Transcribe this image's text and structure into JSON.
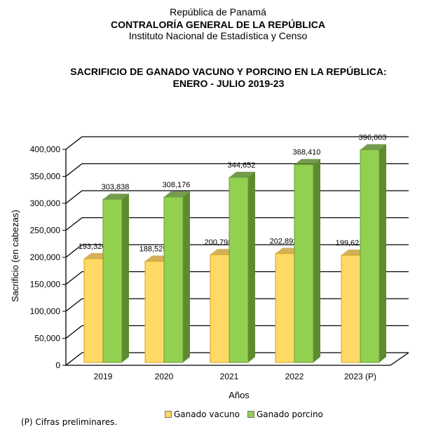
{
  "header": {
    "line1": "República de Panamá",
    "line2": "CONTRALORÍA GENERAL DE LA REPÚBLICA",
    "line3": "Instituto Nacional de Estadística y Censo"
  },
  "note": "(P) Cifras preliminares.",
  "chart_data": {
    "type": "bar",
    "title": "SACRIFICIO DE GANADO VACUNO Y PORCINO EN LA REPÚBLICA:",
    "subtitle": "ENERO - JULIO 2019-23",
    "xlabel": "Años",
    "ylabel": "Sacrificio  (en cabezas)",
    "ylim": [
      0,
      400000
    ],
    "yticks": [
      "0",
      "50,000",
      "100,000",
      "150,000",
      "200,000",
      "250,000",
      "300,000",
      "350,000",
      "400,000"
    ],
    "categories": [
      "2019",
      "2020",
      "2021",
      "2022",
      "2023 (P)"
    ],
    "series": [
      {
        "name": "Ganado vacuno",
        "values": [
          193320,
          188525,
          200798,
          202892,
          199621
        ],
        "labels": [
          "193,320",
          "188,525",
          "200,798",
          "202,892",
          "199,621"
        ],
        "color": "#FFD966",
        "side": "#C9A43C",
        "edge": "#D4A017"
      },
      {
        "name": "Ganado porcino",
        "values": [
          303838,
          308176,
          344652,
          368410,
          396003
        ],
        "labels": [
          "303,838",
          "308,176",
          "344,652",
          "368,410",
          "396,003"
        ],
        "color": "#92D050",
        "side": "#5E8A30",
        "edge": "#6A9A38"
      }
    ],
    "legend": "bottom",
    "grid": true
  }
}
